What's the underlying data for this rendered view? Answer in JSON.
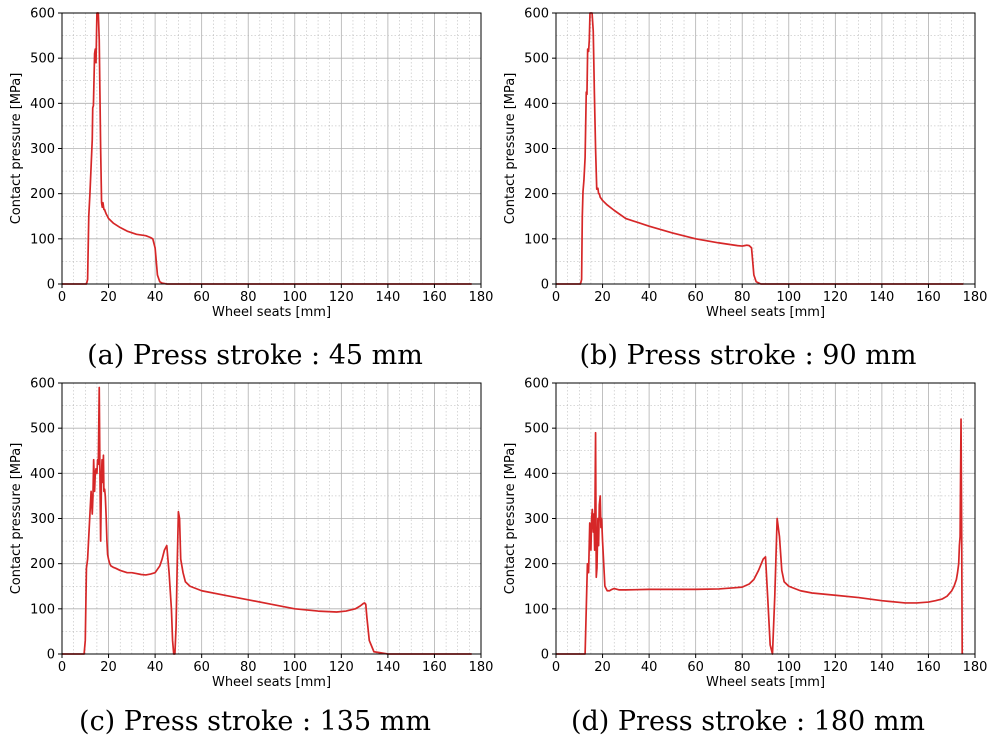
{
  "figure": {
    "series_color": "#d62728"
  },
  "chart_data": [
    {
      "type": "line",
      "caption": "(a) Press stroke : 45 mm",
      "xlabel": "Wheel seats [mm]",
      "ylabel": "Contact pressure [MPa]",
      "xlim": [
        0,
        180
      ],
      "ylim": [
        0,
        600
      ],
      "xticks": [
        0,
        20,
        40,
        60,
        80,
        100,
        120,
        140,
        160,
        180
      ],
      "yticks": [
        0,
        100,
        200,
        300,
        400,
        500,
        600
      ],
      "grid": true,
      "series": [
        {
          "x": [
            0,
            10.5,
            11,
            11.5,
            12,
            12.5,
            13,
            13.2,
            13.5,
            14,
            14.3,
            14.6,
            15,
            15.3,
            15.6,
            16,
            16.3,
            16.6,
            17,
            17.3,
            17.6,
            18,
            18.3,
            18.6,
            19,
            20,
            22,
            25,
            28,
            32,
            36,
            38,
            39,
            40,
            40.5,
            41,
            42,
            43,
            45,
            60,
            100,
            140,
            176
          ],
          "y": [
            0,
            0,
            10,
            150,
            200,
            260,
            320,
            390,
            395,
            510,
            520,
            490,
            600,
            600,
            600,
            540,
            420,
            300,
            180,
            170,
            180,
            165,
            165,
            160,
            155,
            145,
            135,
            125,
            117,
            110,
            107,
            103,
            100,
            80,
            50,
            20,
            5,
            2,
            0,
            0,
            0,
            0,
            0
          ]
        }
      ]
    },
    {
      "type": "line",
      "caption": "(b) Press stroke : 90 mm",
      "xlabel": "Wheel seats [mm]",
      "ylabel": "Contact pressure [MPa]",
      "xlim": [
        0,
        180
      ],
      "ylim": [
        0,
        600
      ],
      "xticks": [
        0,
        20,
        40,
        60,
        80,
        100,
        120,
        140,
        160,
        180
      ],
      "yticks": [
        0,
        100,
        200,
        300,
        400,
        500,
        600
      ],
      "grid": true,
      "series": [
        {
          "x": [
            0,
            10.5,
            11,
            11.3,
            11.6,
            12,
            12.5,
            13,
            13.3,
            13.6,
            14,
            14.3,
            14.6,
            15,
            15.5,
            16,
            16.5,
            17,
            17.5,
            18,
            18.3,
            18.6,
            19,
            20,
            22,
            25,
            30,
            40,
            50,
            60,
            70,
            78,
            80,
            81,
            82,
            83,
            84,
            84.5,
            85,
            86,
            88,
            90,
            120,
            150,
            175
          ],
          "y": [
            0,
            0,
            10,
            150,
            205,
            230,
            280,
            425,
            420,
            520,
            515,
            540,
            600,
            600,
            600,
            560,
            420,
            300,
            210,
            212,
            200,
            200,
            192,
            185,
            175,
            163,
            145,
            128,
            113,
            100,
            91,
            85,
            84,
            85,
            86,
            85,
            80,
            50,
            20,
            5,
            0,
            0,
            0,
            0,
            0
          ]
        }
      ]
    },
    {
      "type": "line",
      "caption": "(c) Press stroke : 135 mm",
      "xlabel": "Wheel seats [mm]",
      "ylabel": "Contact pressure [MPa]",
      "xlim": [
        0,
        180
      ],
      "ylim": [
        0,
        600
      ],
      "xticks": [
        0,
        20,
        40,
        60,
        80,
        100,
        120,
        140,
        160,
        180
      ],
      "yticks": [
        0,
        100,
        200,
        300,
        400,
        500,
        600
      ],
      "grid": true,
      "series": [
        {
          "x": [
            0,
            9.5,
            10,
            10.5,
            11,
            11.5,
            12,
            12.5,
            13,
            13.3,
            13.6,
            14,
            14.3,
            14.6,
            15,
            15.3,
            15.6,
            16,
            16.3,
            16.6,
            17,
            17.2,
            17.5,
            17.8,
            18,
            18.3,
            18.6,
            19,
            19.3,
            19.6,
            20,
            20.5,
            21,
            22,
            23,
            25,
            28,
            30,
            32,
            34,
            36,
            38,
            40,
            42,
            43,
            44,
            45,
            46,
            47,
            47.5,
            48,
            48.5,
            49,
            49.5,
            50,
            50.5,
            51,
            52,
            53,
            55,
            60,
            70,
            80,
            90,
            100,
            110,
            118,
            122,
            126,
            128,
            129.5,
            130,
            130.5,
            131,
            132,
            134,
            140,
            160,
            176
          ],
          "y": [
            0,
            0,
            30,
            190,
            210,
            260,
            310,
            360,
            310,
            350,
            430,
            360,
            400,
            410,
            400,
            430,
            420,
            590,
            400,
            250,
            400,
            430,
            380,
            440,
            360,
            365,
            350,
            300,
            250,
            220,
            210,
            200,
            195,
            192,
            190,
            185,
            180,
            180,
            178,
            176,
            175,
            177,
            180,
            195,
            210,
            230,
            240,
            180,
            100,
            30,
            0,
            0,
            60,
            200,
            315,
            300,
            210,
            180,
            160,
            150,
            140,
            130,
            120,
            110,
            100,
            95,
            93,
            95,
            100,
            106,
            112,
            113,
            110,
            80,
            30,
            5,
            0,
            0,
            0
          ]
        }
      ]
    },
    {
      "type": "line",
      "caption": "(d) Press stroke : 180 mm",
      "xlabel": "Wheel seats [mm]",
      "ylabel": "Contact pressure [MPa]",
      "xlim": [
        0,
        180
      ],
      "ylim": [
        0,
        600
      ],
      "xticks": [
        0,
        20,
        40,
        60,
        80,
        100,
        120,
        140,
        160,
        180
      ],
      "yticks": [
        0,
        100,
        200,
        300,
        400,
        500,
        600
      ],
      "grid": true,
      "series": [
        {
          "x": [
            0,
            12.5,
            13,
            13.5,
            14,
            14.5,
            15,
            15.3,
            15.6,
            16,
            16.3,
            16.6,
            17,
            17.3,
            17.6,
            18,
            18.3,
            18.6,
            19,
            19.3,
            19.6,
            20,
            20.5,
            21,
            22,
            23,
            24,
            25,
            27,
            30,
            40,
            50,
            60,
            70,
            75,
            80,
            83,
            85,
            87,
            89,
            90,
            91,
            92,
            93,
            94,
            95,
            96,
            97,
            98,
            100,
            105,
            110,
            120,
            130,
            140,
            150,
            155,
            160,
            163,
            166,
            168,
            170,
            171,
            172,
            172.5,
            173,
            173.3,
            173.6,
            174,
            174.3,
            174.5
          ],
          "y": [
            0,
            0,
            100,
            200,
            180,
            290,
            230,
            300,
            320,
            270,
            310,
            230,
            490,
            170,
            190,
            300,
            240,
            330,
            350,
            280,
            300,
            250,
            200,
            150,
            140,
            140,
            143,
            145,
            142,
            142,
            143,
            143,
            143,
            144,
            146,
            148,
            155,
            165,
            185,
            210,
            215,
            120,
            20,
            0,
            130,
            300,
            260,
            185,
            160,
            150,
            140,
            135,
            130,
            125,
            118,
            113,
            113,
            115,
            118,
            122,
            128,
            140,
            150,
            165,
            180,
            200,
            240,
            260,
            520,
            250,
            0
          ]
        }
      ]
    }
  ]
}
